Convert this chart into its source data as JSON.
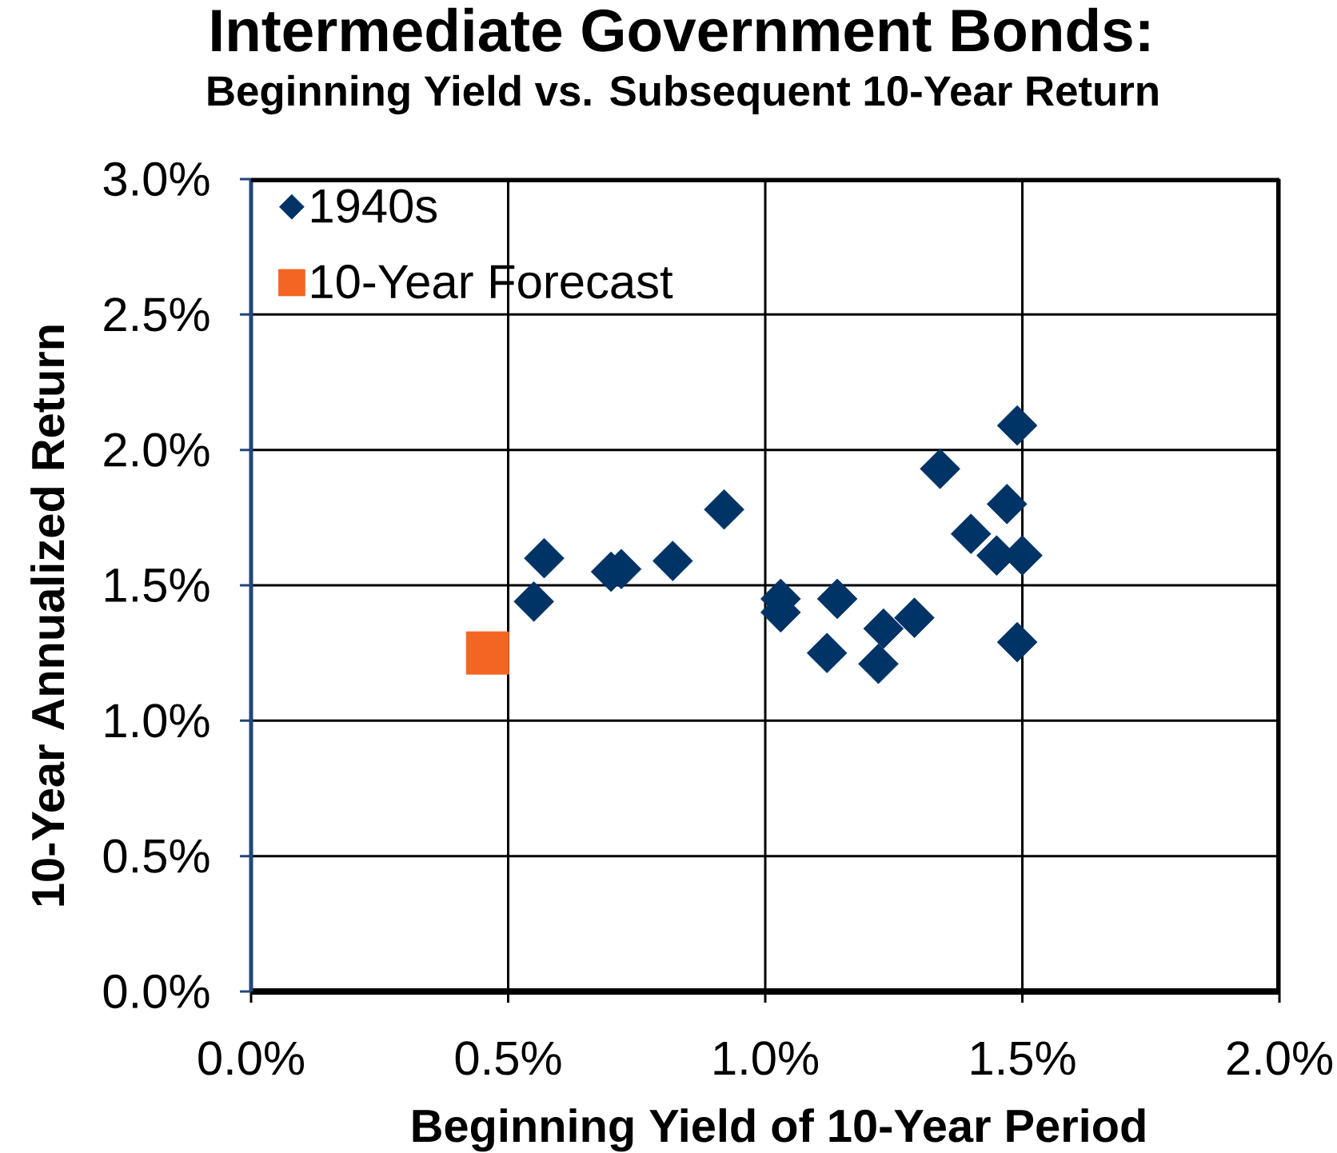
{
  "chart_data": {
    "type": "scatter",
    "title": "Intermediate Government Bonds:",
    "subtitle": "Beginning Yield vs. Subsequent 10-Year Return",
    "xlabel": "Beginning Yield of 10-Year Period",
    "ylabel": "10-Year Annualized Return",
    "series": [
      {
        "name": "1940s",
        "color": "#003366",
        "marker": "diamond",
        "x": [
          0.55,
          0.57,
          0.7,
          0.72,
          0.82,
          0.92,
          1.03,
          1.03,
          1.12,
          1.14,
          1.22,
          1.23,
          1.29,
          1.34,
          1.4,
          1.45,
          1.47,
          1.49,
          1.49,
          1.5
        ],
        "values": [
          1.44,
          1.6,
          1.55,
          1.56,
          1.59,
          1.78,
          1.45,
          1.4,
          1.25,
          1.45,
          1.21,
          1.34,
          1.38,
          1.93,
          1.69,
          1.61,
          1.8,
          2.09,
          1.29,
          1.61
        ]
      },
      {
        "name": "10-Year Forecast",
        "color": "#f26522",
        "marker": "square",
        "x": [
          0.46
        ],
        "values": [
          1.25
        ]
      }
    ],
    "xlim": [
      0,
      2
    ],
    "ylim": [
      0,
      3
    ],
    "xticks": [
      {
        "value": 0,
        "label": "0.0%"
      },
      {
        "value": 0.5,
        "label": "0.5%"
      },
      {
        "value": 1,
        "label": "1.0%"
      },
      {
        "value": 1.5,
        "label": "1.5%"
      },
      {
        "value": 2,
        "label": "2.0%"
      }
    ],
    "yticks": [
      {
        "value": 0,
        "label": "0.0%"
      },
      {
        "value": 0.5,
        "label": "0.5%"
      },
      {
        "value": 1,
        "label": "1.0%"
      },
      {
        "value": 1.5,
        "label": "1.5%"
      },
      {
        "value": 2,
        "label": "2.0%"
      },
      {
        "value": 2.5,
        "label": "2.5%"
      },
      {
        "value": 3,
        "label": "3.0%"
      }
    ],
    "grid": true,
    "legend": "top left"
  }
}
